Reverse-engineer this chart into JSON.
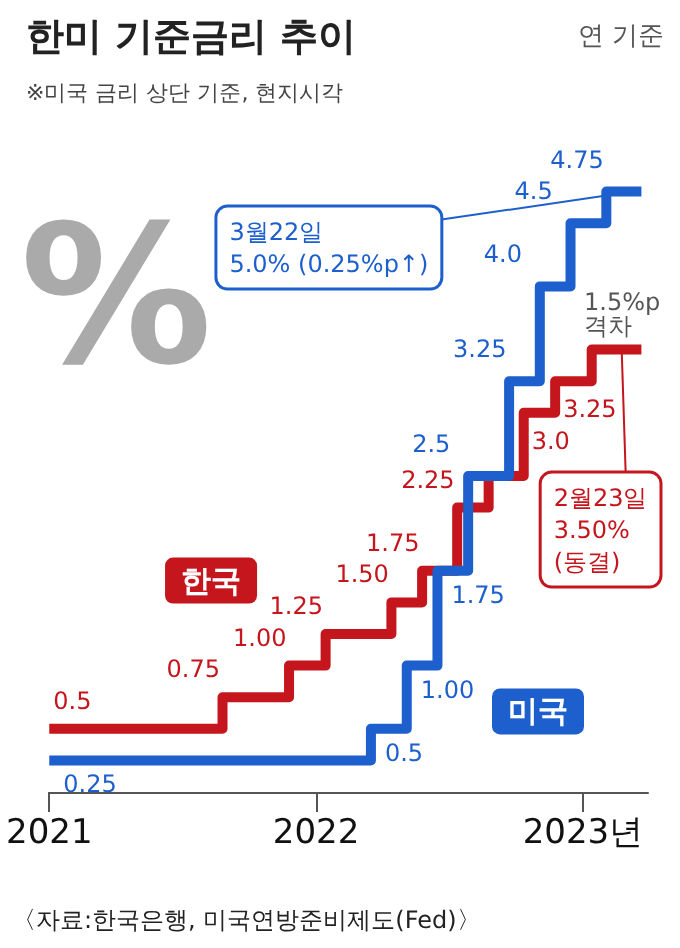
{
  "chart_data": {
    "type": "step",
    "title": "한미 기준금리 추이",
    "subtitle": "※미국 금리 상단 기준, 현지시각",
    "xlim": [
      "2021-01-01",
      "2023-03-31"
    ],
    "xticks": [
      {
        "value": "2021-01-01",
        "label": "2021"
      },
      {
        "value": "2022-01-01",
        "label": "2022"
      },
      {
        "value": "2023-01-01",
        "label": "2023년"
      }
    ],
    "series": [
      {
        "name": "한국",
        "color": "#c4161c",
        "x": [
          "2021-01-01",
          "2021-08-26",
          "2021-11-25",
          "2022-01-14",
          "2022-04-14",
          "2022-05-26",
          "2022-07-13",
          "2022-08-25",
          "2022-10-12",
          "2022-11-24",
          "2023-01-13",
          "2023-03-22"
        ],
        "values": [
          0.5,
          0.75,
          1.0,
          1.25,
          1.5,
          1.75,
          2.25,
          2.5,
          3.0,
          3.25,
          3.5,
          3.5
        ],
        "value_labels": [
          "0.5",
          "0.75",
          "1.00",
          "1.25",
          "1.50",
          "1.75",
          "2.25",
          null,
          "3.0",
          "3.25",
          null,
          null
        ]
      },
      {
        "name": "미국",
        "color": "#1d5fcc",
        "x": [
          "2021-01-01",
          "2022-03-17",
          "2022-05-05",
          "2022-06-16",
          "2022-07-28",
          "2022-09-22",
          "2022-11-03",
          "2022-12-15",
          "2023-02-02",
          "2023-03-22"
        ],
        "values": [
          0.25,
          0.5,
          1.0,
          1.75,
          2.5,
          3.25,
          4.0,
          4.5,
          4.75,
          4.75
        ],
        "value_labels": [
          "0.25",
          "0.5",
          "1.00",
          "1.75",
          "2.5",
          "3.25",
          "4.0",
          "4.5",
          "4.75",
          null
        ]
      }
    ],
    "annotations": [
      "연 기준",
      "%",
      "1.5%p\n격차",
      "〈자료:한국은행, 미국연방준비제도(Fed)〉",
      {
        "text": "3월22일\n5.0% (0.25%p↑)",
        "x": "2023-03-22",
        "y": 4.75
      },
      {
        "text": "2월23일\n3.50%\n(동결)",
        "x": "2023-02-23",
        "y": 3.5
      }
    ],
    "legend": false,
    "grid": false,
    "marker": "none",
    "line_style": "solid"
  }
}
